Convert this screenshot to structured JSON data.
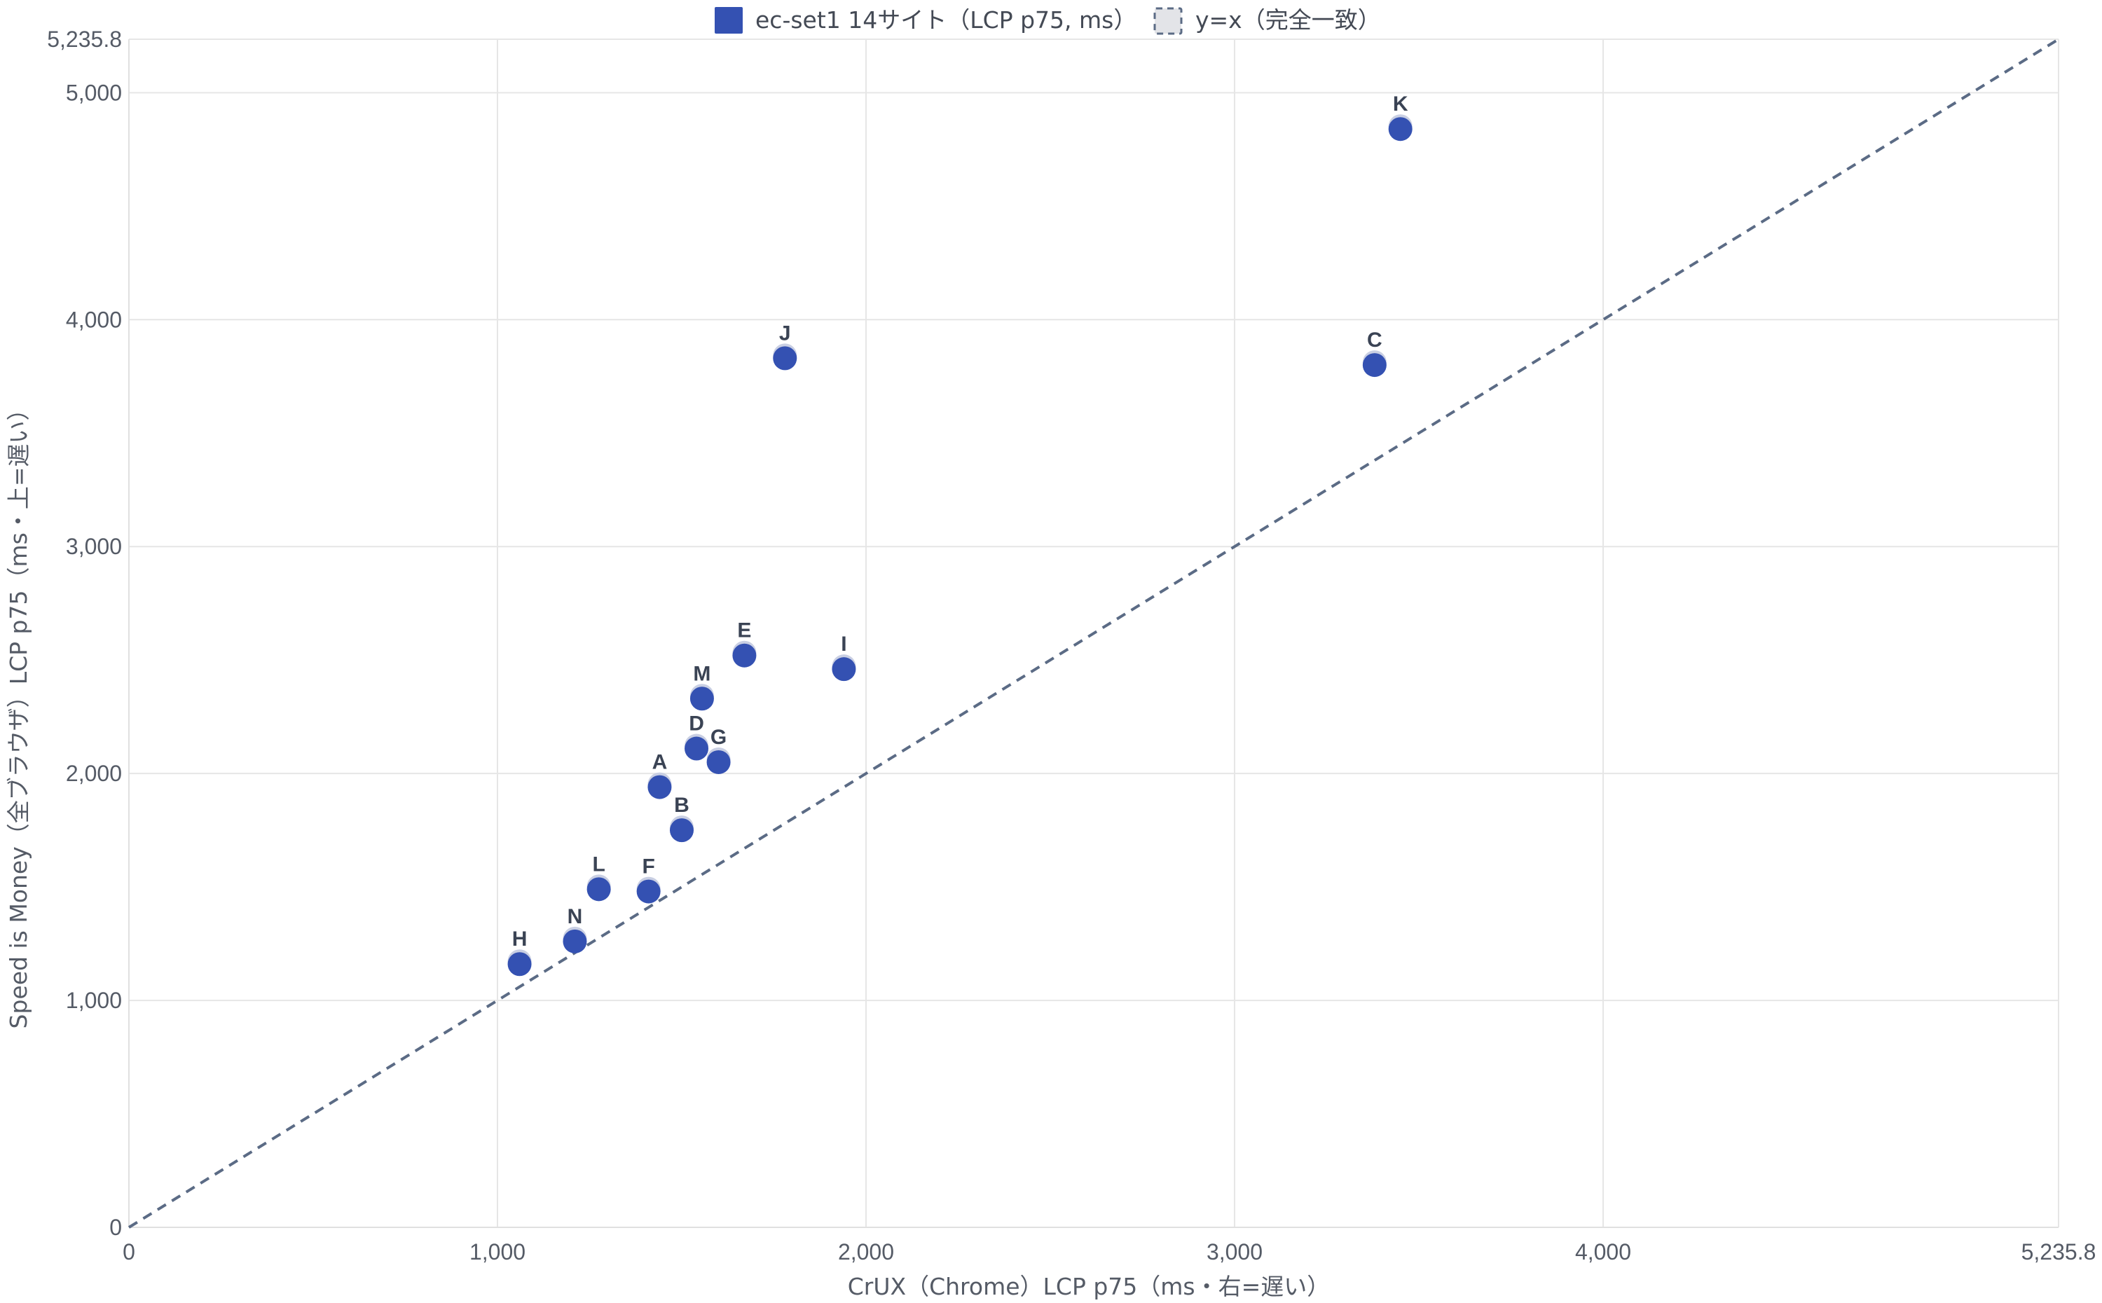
{
  "chart_data": {
    "type": "scatter",
    "title": "",
    "xlabel": "CrUX（Chrome）LCP p75（ms・右=遅い）",
    "ylabel": "Speed is Money（全ブラウザ）LCP p75（ms・上=遅い）",
    "xlim": [
      0,
      5235.8
    ],
    "ylim": [
      0,
      5235.8
    ],
    "x_ticks": [
      0,
      1000,
      2000,
      3000,
      4000,
      5235.8
    ],
    "x_tick_labels": [
      "0",
      "1,000",
      "2,000",
      "3,000",
      "4,000",
      "5,235.8"
    ],
    "y_ticks": [
      0,
      1000,
      2000,
      3000,
      4000,
      5000,
      5235.8
    ],
    "y_tick_labels": [
      "0",
      "1,000",
      "2,000",
      "3,000",
      "4,000",
      "5,000",
      "5,235.8"
    ],
    "grid": true,
    "legend_position": "top-center",
    "legend": [
      {
        "label": "ec-set1 14サイト（LCP p75, ms）",
        "kind": "marker",
        "color": "#3451b2"
      },
      {
        "label": "y=x（完全一致）",
        "kind": "dashed-line",
        "color": "#5b6b85"
      }
    ],
    "series": [
      {
        "name": "ec-set1 14サイト（LCP p75, ms）",
        "color": "#3451b2",
        "points": [
          {
            "label": "A",
            "x": 1440,
            "y": 1940
          },
          {
            "label": "B",
            "x": 1500,
            "y": 1750
          },
          {
            "label": "C",
            "x": 3380,
            "y": 3800
          },
          {
            "label": "D",
            "x": 1540,
            "y": 2110
          },
          {
            "label": "E",
            "x": 1670,
            "y": 2520
          },
          {
            "label": "F",
            "x": 1410,
            "y": 1480
          },
          {
            "label": "G",
            "x": 1600,
            "y": 2050
          },
          {
            "label": "H",
            "x": 1060,
            "y": 1160
          },
          {
            "label": "I",
            "x": 1940,
            "y": 2460
          },
          {
            "label": "J",
            "x": 1780,
            "y": 3830
          },
          {
            "label": "K",
            "x": 3450,
            "y": 4840
          },
          {
            "label": "L",
            "x": 1275,
            "y": 1490
          },
          {
            "label": "M",
            "x": 1555,
            "y": 2330
          },
          {
            "label": "N",
            "x": 1210,
            "y": 1260
          }
        ]
      },
      {
        "name": "y=x（完全一致）",
        "color": "#5b6b85",
        "line": [
          [
            0,
            0
          ],
          [
            5235.8,
            5235.8
          ]
        ]
      }
    ]
  }
}
